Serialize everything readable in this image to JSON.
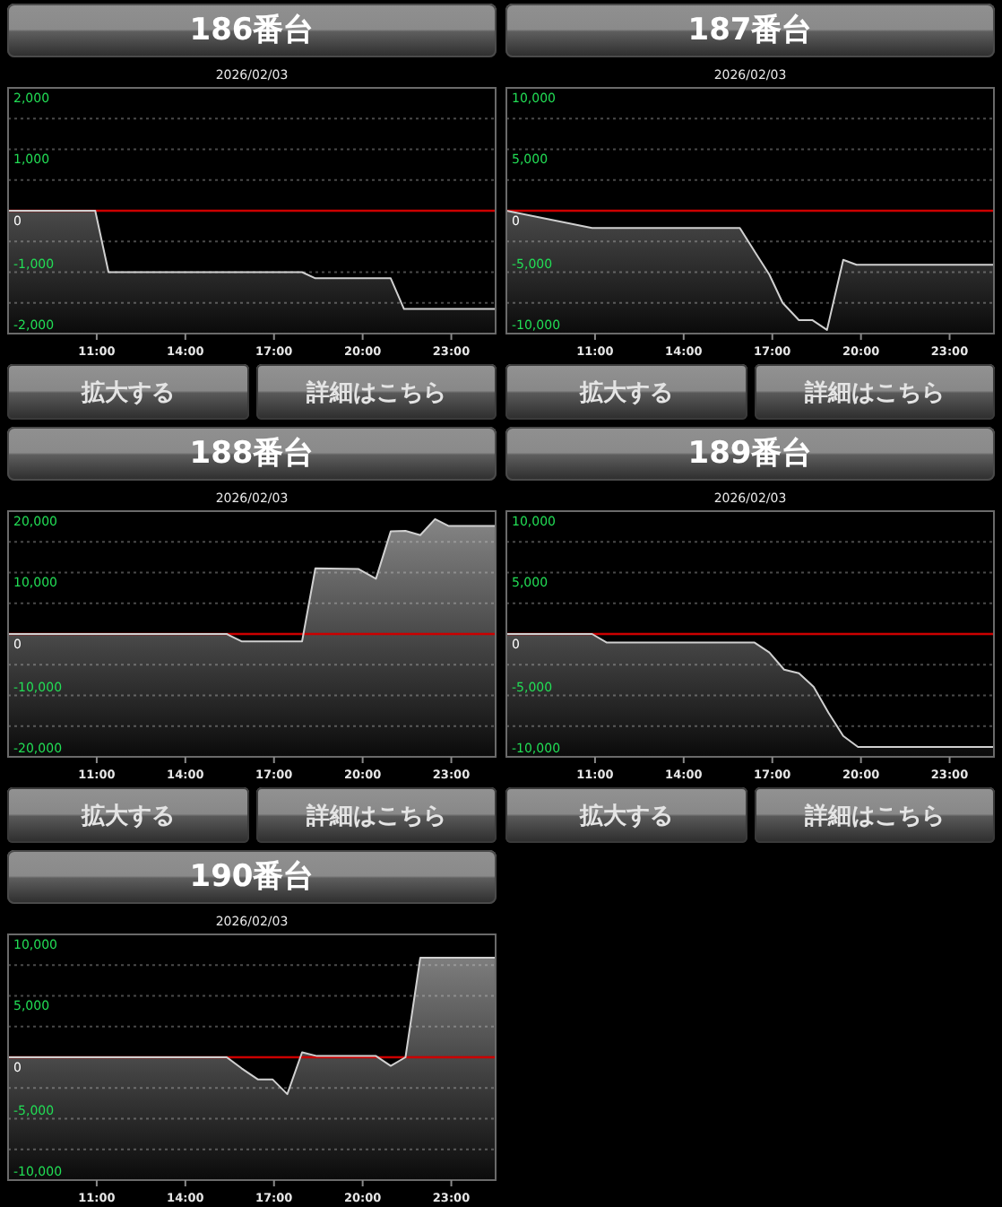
{
  "chart_data": [
    {
      "type": "area",
      "title": "186番台",
      "subtitle": "2026/02/03",
      "x": [
        8,
        10.95,
        11.4,
        17.95,
        18.4,
        20.95,
        21.4,
        24.5
      ],
      "values": [
        0,
        0,
        -1000,
        -1000,
        -1100,
        -1100,
        -1600,
        -1600
      ],
      "color": "#d0d0d0",
      "xlim": [
        8,
        24.5
      ],
      "xticks": [
        {
          "value": 11,
          "label": "11:00"
        },
        {
          "value": 14,
          "label": "14:00"
        },
        {
          "value": 17,
          "label": "17:00"
        },
        {
          "value": 20,
          "label": "20:00"
        },
        {
          "value": 23,
          "label": "23:00"
        }
      ],
      "ylim": [
        -2000,
        2000
      ],
      "yticks": [
        {
          "value": -2000,
          "label": "-2,000"
        },
        {
          "value": -1500,
          "label": null
        },
        {
          "value": -1000,
          "label": "-1,000"
        },
        {
          "value": -500,
          "label": null
        },
        {
          "value": 0,
          "label": "0"
        },
        {
          "value": 500,
          "label": null
        },
        {
          "value": 1000,
          "label": "1,000"
        },
        {
          "value": 1500,
          "label": null
        },
        {
          "value": 2000,
          "label": "2,000"
        }
      ],
      "grid": "y",
      "ref_lines": [
        {
          "axis": "y",
          "value": 0,
          "color": "#cc0000"
        }
      ],
      "annotations": [
        "拡大する",
        "詳細はこちら"
      ]
    },
    {
      "type": "area",
      "title": "187番台",
      "subtitle": "2026/02/03",
      "x": [
        8,
        10.9,
        15.9,
        16.45,
        16.9,
        17.35,
        17.9,
        18.35,
        18.85,
        19.4,
        19.85,
        24.5
      ],
      "values": [
        0,
        -1400,
        -1400,
        -3500,
        -5200,
        -7500,
        -8900,
        -8900,
        -9700,
        -4000,
        -4400,
        -4400
      ],
      "color": "#d0d0d0",
      "xlim": [
        8,
        24.5
      ],
      "xticks": [
        {
          "value": 11,
          "label": "11:00"
        },
        {
          "value": 14,
          "label": "14:00"
        },
        {
          "value": 17,
          "label": "17:00"
        },
        {
          "value": 20,
          "label": "20:00"
        },
        {
          "value": 23,
          "label": "23:00"
        }
      ],
      "ylim": [
        -10000,
        10000
      ],
      "yticks": [
        {
          "value": -10000,
          "label": "-10,000"
        },
        {
          "value": -7500,
          "label": null
        },
        {
          "value": -5000,
          "label": "-5,000"
        },
        {
          "value": -2500,
          "label": null
        },
        {
          "value": 0,
          "label": "0"
        },
        {
          "value": 2500,
          "label": null
        },
        {
          "value": 5000,
          "label": "5,000"
        },
        {
          "value": 7500,
          "label": null
        },
        {
          "value": 10000,
          "label": "10,000"
        }
      ],
      "grid": "y",
      "ref_lines": [
        {
          "axis": "y",
          "value": 0,
          "color": "#cc0000"
        }
      ],
      "annotations": [
        "拡大する",
        "詳細はこちら"
      ]
    },
    {
      "type": "area",
      "title": "188番台",
      "subtitle": "2026/02/03",
      "x": [
        8,
        15.4,
        15.9,
        17.95,
        18.4,
        19.85,
        20.45,
        20.95,
        21.45,
        21.95,
        22.45,
        22.9,
        24.5
      ],
      "values": [
        0,
        0,
        -1200,
        -1200,
        10700,
        10600,
        9000,
        16700,
        16800,
        16100,
        18700,
        17600,
        17600
      ],
      "color": "#d0d0d0",
      "xlim": [
        8,
        24.5
      ],
      "xticks": [
        {
          "value": 11,
          "label": "11:00"
        },
        {
          "value": 14,
          "label": "14:00"
        },
        {
          "value": 17,
          "label": "17:00"
        },
        {
          "value": 20,
          "label": "20:00"
        },
        {
          "value": 23,
          "label": "23:00"
        }
      ],
      "ylim": [
        -20000,
        20000
      ],
      "yticks": [
        {
          "value": -20000,
          "label": "-20,000"
        },
        {
          "value": -15000,
          "label": null
        },
        {
          "value": -10000,
          "label": "-10,000"
        },
        {
          "value": -5000,
          "label": null
        },
        {
          "value": 0,
          "label": "0"
        },
        {
          "value": 5000,
          "label": null
        },
        {
          "value": 10000,
          "label": "10,000"
        },
        {
          "value": 15000,
          "label": null
        },
        {
          "value": 20000,
          "label": "20,000"
        }
      ],
      "grid": "y",
      "ref_lines": [
        {
          "axis": "y",
          "value": 0,
          "color": "#cc0000"
        }
      ],
      "annotations": [
        "拡大する",
        "詳細はこちら"
      ]
    },
    {
      "type": "area",
      "title": "189番台",
      "subtitle": "2026/02/03",
      "x": [
        8,
        10.9,
        11.4,
        16.4,
        16.9,
        17.4,
        17.9,
        18.4,
        18.9,
        19.4,
        19.9,
        24.5
      ],
      "values": [
        0,
        0,
        -700,
        -700,
        -1500,
        -2900,
        -3200,
        -4300,
        -6400,
        -8300,
        -9200,
        -9200
      ],
      "color": "#d0d0d0",
      "xlim": [
        8,
        24.5
      ],
      "xticks": [
        {
          "value": 11,
          "label": "11:00"
        },
        {
          "value": 14,
          "label": "14:00"
        },
        {
          "value": 17,
          "label": "17:00"
        },
        {
          "value": 20,
          "label": "20:00"
        },
        {
          "value": 23,
          "label": "23:00"
        }
      ],
      "ylim": [
        -10000,
        10000
      ],
      "yticks": [
        {
          "value": -10000,
          "label": "-10,000"
        },
        {
          "value": -7500,
          "label": null
        },
        {
          "value": -5000,
          "label": "-5,000"
        },
        {
          "value": -2500,
          "label": null
        },
        {
          "value": 0,
          "label": "0"
        },
        {
          "value": 2500,
          "label": null
        },
        {
          "value": 5000,
          "label": "5,000"
        },
        {
          "value": 7500,
          "label": null
        },
        {
          "value": 10000,
          "label": "10,000"
        }
      ],
      "grid": "y",
      "ref_lines": [
        {
          "axis": "y",
          "value": 0,
          "color": "#cc0000"
        }
      ],
      "annotations": [
        "拡大する",
        "詳細はこちら"
      ]
    },
    {
      "type": "area",
      "title": "190番台",
      "subtitle": "2026/02/03",
      "x": [
        8,
        15.4,
        15.9,
        16.45,
        16.95,
        17.45,
        17.95,
        18.45,
        20.45,
        20.95,
        21.45,
        21.95,
        24.5
      ],
      "values": [
        0,
        0,
        -900,
        -1800,
        -1800,
        -3000,
        400,
        100,
        100,
        -700,
        0,
        8100,
        8100
      ],
      "color": "#d0d0d0",
      "xlim": [
        8,
        24.5
      ],
      "xticks": [
        {
          "value": 11,
          "label": "11:00"
        },
        {
          "value": 14,
          "label": "14:00"
        },
        {
          "value": 17,
          "label": "17:00"
        },
        {
          "value": 20,
          "label": "20:00"
        },
        {
          "value": 23,
          "label": "23:00"
        }
      ],
      "ylim": [
        -10000,
        10000
      ],
      "yticks": [
        {
          "value": -10000,
          "label": "-10,000"
        },
        {
          "value": -7500,
          "label": null
        },
        {
          "value": -5000,
          "label": "-5,000"
        },
        {
          "value": -2500,
          "label": null
        },
        {
          "value": 0,
          "label": "0"
        },
        {
          "value": 2500,
          "label": null
        },
        {
          "value": 5000,
          "label": "5,000"
        },
        {
          "value": 7500,
          "label": null
        },
        {
          "value": 10000,
          "label": "10,000"
        }
      ],
      "grid": "y",
      "ref_lines": [
        {
          "axis": "y",
          "value": 0,
          "color": "#cc0000"
        }
      ]
    }
  ]
}
